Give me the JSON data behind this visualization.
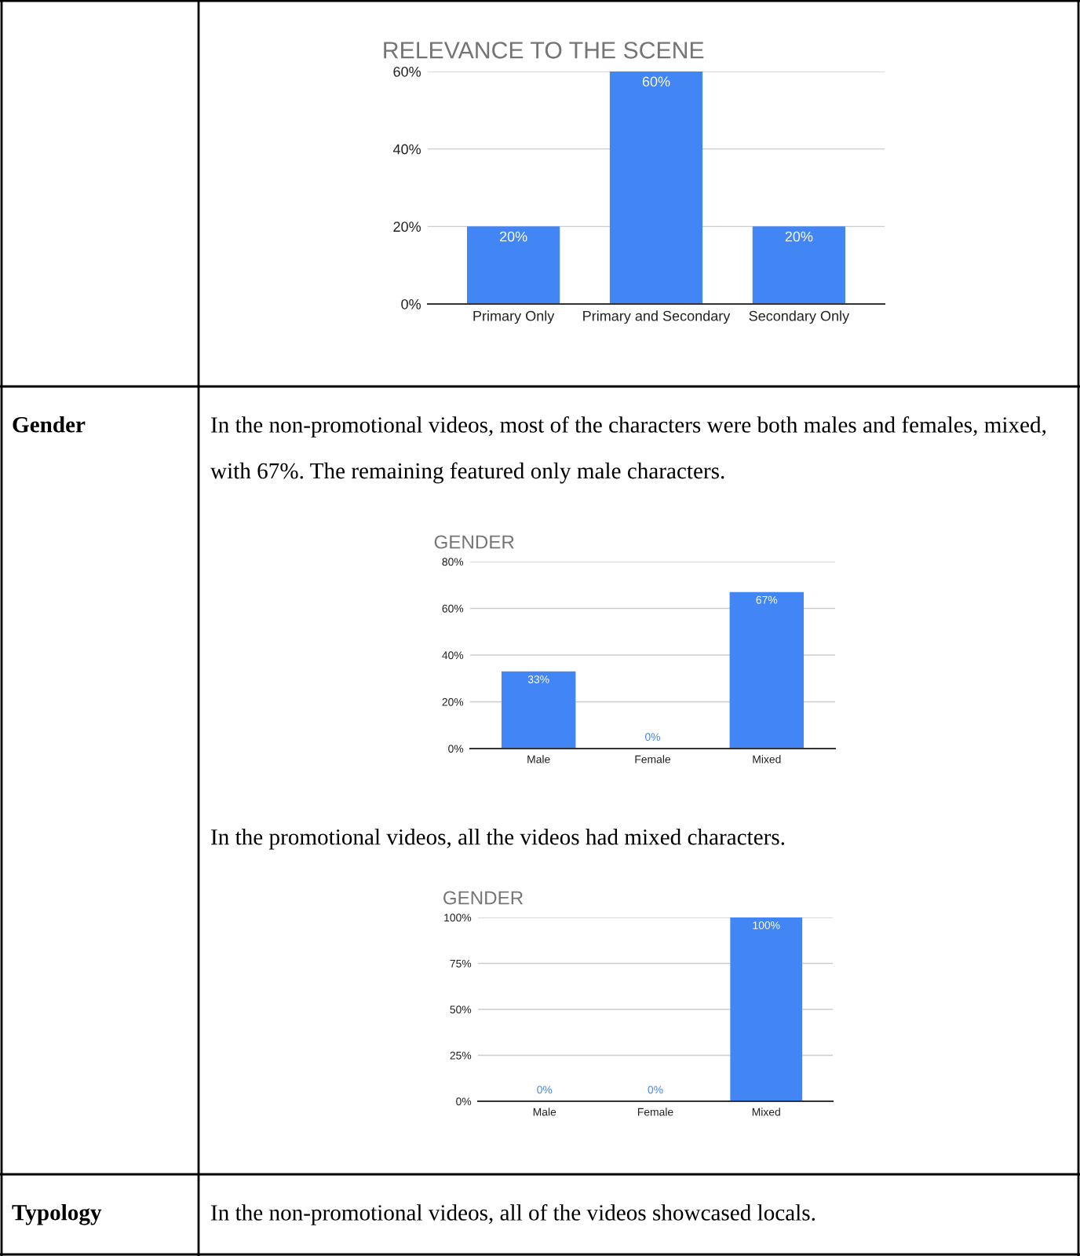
{
  "chart_data": [
    {
      "type": "bar",
      "title": "RELEVANCE TO THE SCENE",
      "categories": [
        "Primary Only",
        "Primary and Secondary",
        "Secondary Only"
      ],
      "values": [
        20,
        60,
        20
      ],
      "value_labels": [
        "20%",
        "60%",
        "20%"
      ],
      "color": "#4285f4",
      "ylim": [
        0,
        60
      ],
      "yticks": [
        {
          "value": 0,
          "label": "0%"
        },
        {
          "value": 20,
          "label": "20%"
        },
        {
          "value": 40,
          "label": "40%"
        },
        {
          "value": 60,
          "label": "60%"
        }
      ],
      "grid": "y",
      "legend": false
    },
    {
      "type": "bar",
      "title": "GENDER",
      "categories": [
        "Male",
        "Female",
        "Mixed"
      ],
      "values": [
        33,
        0,
        67
      ],
      "value_labels": [
        "33%",
        "0%",
        "67%"
      ],
      "color": "#4285f4",
      "ylim": [
        0,
        80
      ],
      "yticks": [
        {
          "value": 0,
          "label": "0%"
        },
        {
          "value": 20,
          "label": "20%"
        },
        {
          "value": 40,
          "label": "40%"
        },
        {
          "value": 60,
          "label": "60%"
        },
        {
          "value": 80,
          "label": "80%"
        }
      ],
      "grid": "y",
      "legend": false,
      "annotations": [
        "Gender",
        "In the non-promotional videos, most of the characters were both males and females, mixed, with 67%. The remaining featured only male characters."
      ]
    },
    {
      "type": "bar",
      "title": "GENDER",
      "categories": [
        "Male",
        "Female",
        "Mixed"
      ],
      "values": [
        0,
        0,
        100
      ],
      "value_labels": [
        "0%",
        "0%",
        "100%"
      ],
      "color": "#4285f4",
      "ylim": [
        0,
        100
      ],
      "yticks": [
        {
          "value": 0,
          "label": "0%"
        },
        {
          "value": 25,
          "label": "25%"
        },
        {
          "value": 50,
          "label": "50%"
        },
        {
          "value": 75,
          "label": "75%"
        },
        {
          "value": 100,
          "label": "100%"
        }
      ],
      "grid": "y",
      "legend": false,
      "annotations": [
        "In the promotional videos, all the videos had mixed characters.",
        "Typology",
        "In the non-promotional videos, all of the videos showcased locals."
      ]
    }
  ]
}
